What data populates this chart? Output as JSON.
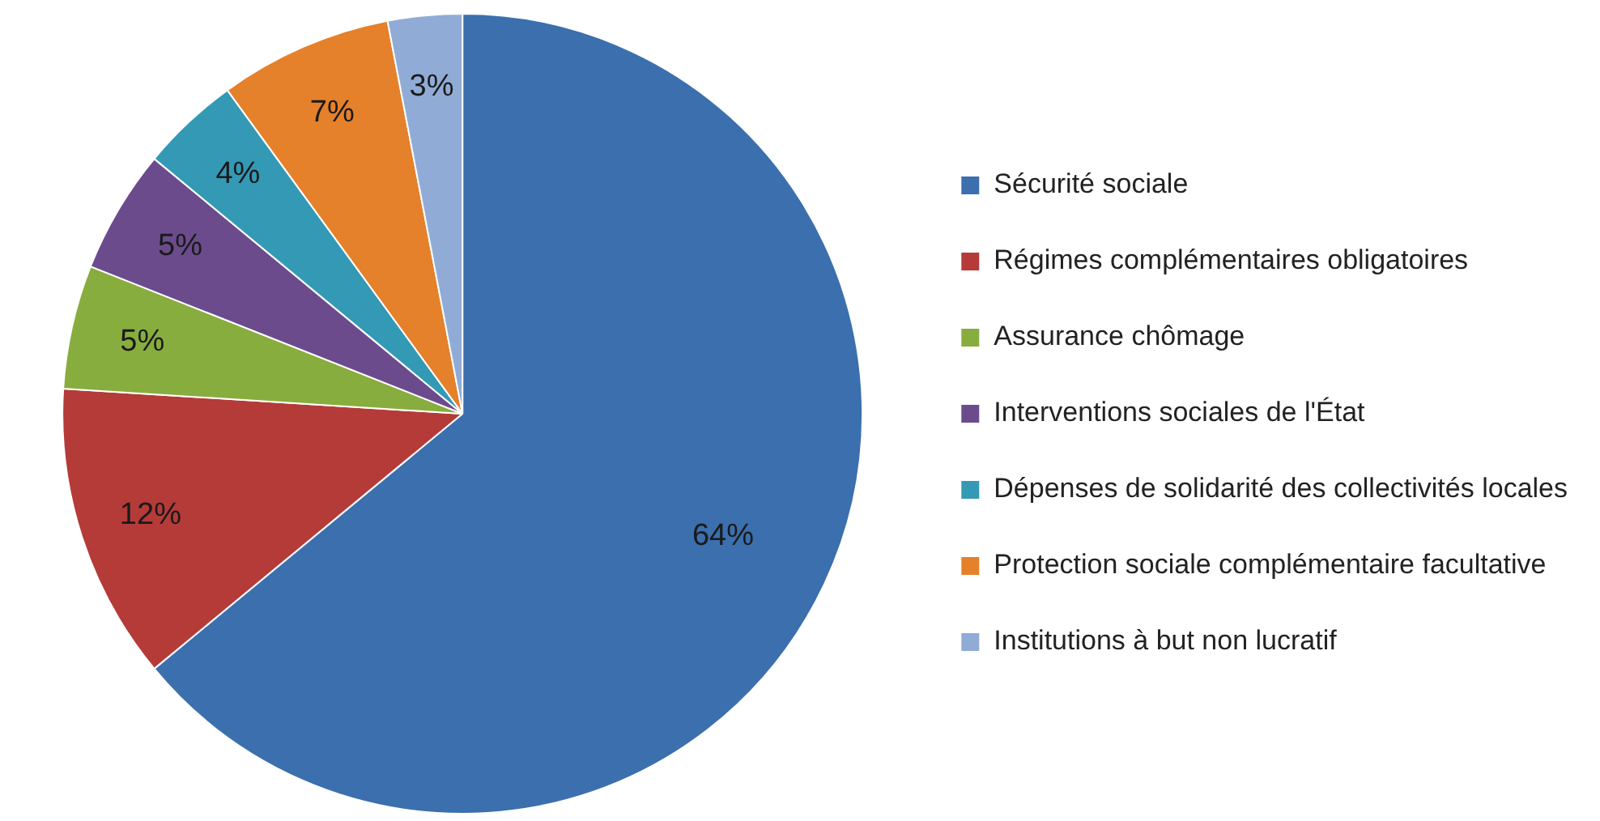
{
  "chart_data": {
    "type": "pie",
    "categories": [
      "Sécurité sociale",
      "Régimes complémentaires obligatoires",
      "Assurance chômage",
      "Interventions sociales de l'État",
      "Dépenses de solidarité des collectivités locales",
      "Protection sociale complémentaire facultative",
      "Institutions à but non lucratif"
    ],
    "values": [
      64,
      12,
      5,
      5,
      4,
      7,
      3
    ],
    "colors": [
      "#3b6fae",
      "#b43b38",
      "#88ad3f",
      "#6c4b8d",
      "#3499b5",
      "#e5802b",
      "#90abd6"
    ],
    "value_labels": [
      "64%",
      "12%",
      "5%",
      "5%",
      "4%",
      "7%",
      "3%"
    ],
    "legend": "right"
  }
}
